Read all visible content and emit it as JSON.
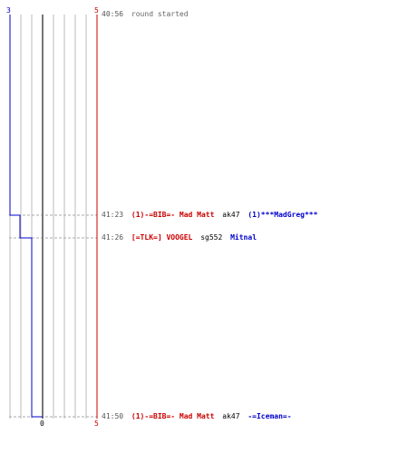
{
  "timeline": {
    "left_axis": {
      "top_label": "3",
      "color": "#0000cc"
    },
    "right_axis": {
      "top_label": "5",
      "bottom_label": "5",
      "color": "#cc0000"
    },
    "bottom_center_label": "0"
  },
  "chart_data": {
    "type": "line",
    "x": [
      "40:56",
      "41:23",
      "41:26",
      "41:50"
    ],
    "series": [
      {
        "values": [
          3,
          2,
          1,
          0
        ],
        "color": "#0000cc"
      }
    ]
  },
  "events": [
    {
      "time": "40:56",
      "message": "round started"
    },
    {
      "time": "41:23",
      "killer": "(1)-=BIB=- Mad Matt",
      "weapon": "ak47",
      "victim": "(1)***MadGreg***"
    },
    {
      "time": "41:26",
      "killer": "[=TLK=] VOOGEL",
      "weapon": "sg552",
      "victim": "Mitnal"
    },
    {
      "time": "41:50",
      "killer": "(1)-=BIB=- Mad Matt",
      "weapon": "ak47",
      "victim": "-=Iceman=-"
    }
  ],
  "colors": {
    "killer": "#cc0000",
    "victim": "#0000cc",
    "grid": "#bbbbbb",
    "dashed": "#aaaaaa",
    "center": "#777777"
  }
}
